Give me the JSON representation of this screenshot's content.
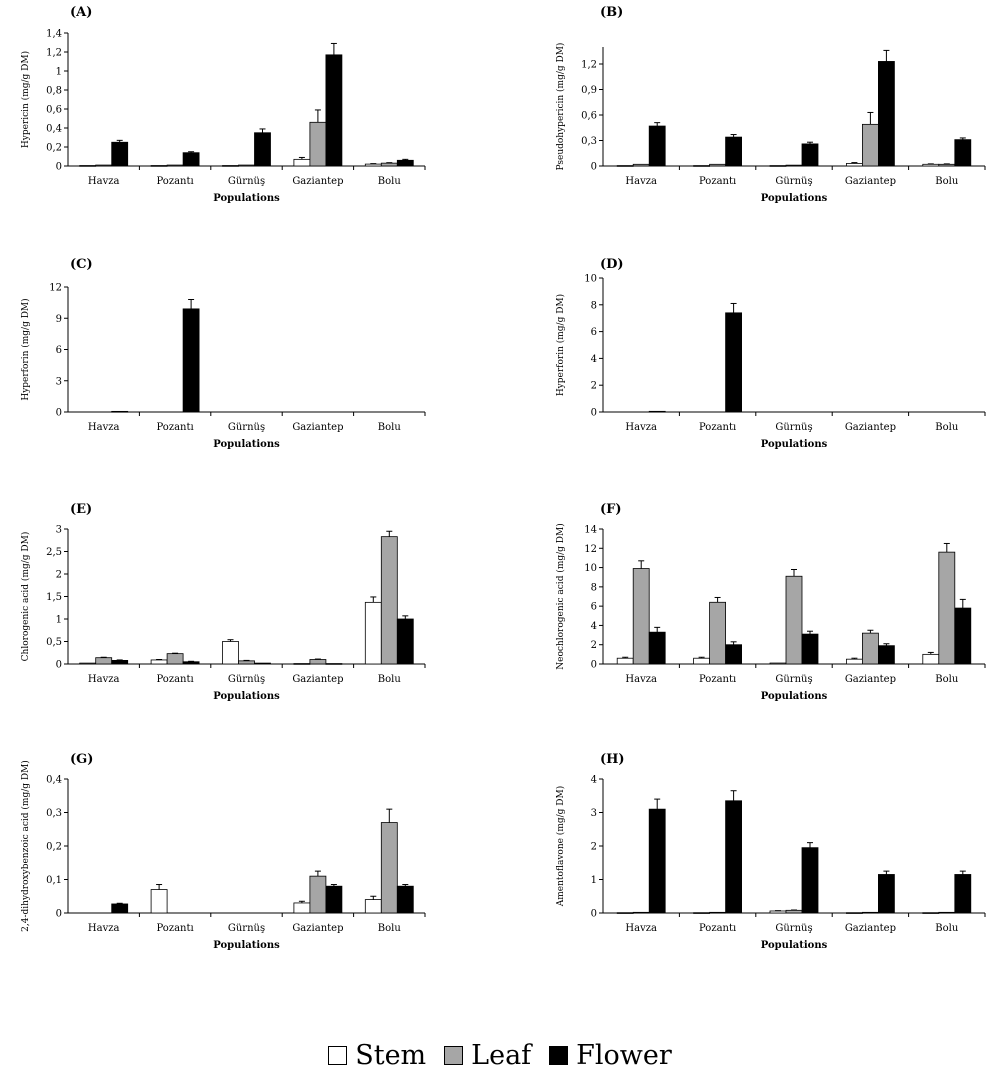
{
  "chart_data": [
    {
      "panel": "(A)",
      "type": "bar",
      "categories": [
        "Havza",
        "Pozantı",
        "Gürnüş",
        "Gaziantep",
        "Bolu"
      ],
      "ylabel": "Hypericin (mg/g DM)",
      "xlabel": "Populations",
      "ylim": [
        0,
        1.4
      ],
      "yticks": [
        "0",
        "0,2",
        "0,4",
        "0,6",
        "0,8",
        "1",
        "1,2",
        "1,4"
      ],
      "series": [
        {
          "name": "Stem",
          "values": [
            0.005,
            0.005,
            0.005,
            0.07,
            0.02
          ],
          "errors": [
            0,
            0,
            0,
            0.02,
            0.005
          ]
        },
        {
          "name": "Leaf",
          "values": [
            0.01,
            0.01,
            0.01,
            0.46,
            0.03
          ],
          "errors": [
            0,
            0,
            0,
            0.13,
            0.005
          ]
        },
        {
          "name": "Flower",
          "values": [
            0.25,
            0.14,
            0.35,
            1.17,
            0.06
          ],
          "errors": [
            0.02,
            0.01,
            0.04,
            0.12,
            0.01
          ]
        }
      ]
    },
    {
      "panel": "(B)",
      "type": "bar",
      "categories": [
        "Havza",
        "Pozantı",
        "Gürnüş",
        "Gaziantep",
        "Bolu"
      ],
      "ylabel": "Pseudohypericin (mg/g DM)",
      "xlabel": "Populations",
      "ylim": [
        0,
        1.4
      ],
      "yticks": [
        "0",
        "0,3",
        "0,6",
        "0,9",
        "1,2"
      ],
      "ytick_values": [
        0,
        0.3,
        0.6,
        0.9,
        1.2
      ],
      "series": [
        {
          "name": "Stem",
          "values": [
            0.005,
            0.005,
            0.005,
            0.03,
            0.02
          ],
          "errors": [
            0,
            0,
            0,
            0.01,
            0.005
          ]
        },
        {
          "name": "Leaf",
          "values": [
            0.02,
            0.02,
            0.01,
            0.49,
            0.02
          ],
          "errors": [
            0,
            0,
            0,
            0.14,
            0.005
          ]
        },
        {
          "name": "Flower",
          "values": [
            0.47,
            0.34,
            0.26,
            1.23,
            0.31
          ],
          "errors": [
            0.04,
            0.03,
            0.02,
            0.13,
            0.02
          ]
        }
      ]
    },
    {
      "panel": "(C)",
      "type": "bar",
      "categories": [
        "Havza",
        "Pozantı",
        "Gürnüş",
        "Gaziantep",
        "Bolu"
      ],
      "ylabel": "Hyperforin (mg/g DM)",
      "xlabel": "Populations",
      "ylim": [
        0,
        12
      ],
      "yticks": [
        "0",
        "3",
        "6",
        "9",
        "12"
      ],
      "series": [
        {
          "name": "Stem",
          "values": [
            0,
            0,
            0,
            0,
            0
          ],
          "errors": [
            0,
            0,
            0,
            0,
            0
          ]
        },
        {
          "name": "Leaf",
          "values": [
            0,
            0,
            0,
            0,
            0
          ],
          "errors": [
            0,
            0,
            0,
            0,
            0
          ]
        },
        {
          "name": "Flower",
          "values": [
            0.06,
            9.9,
            0,
            0,
            0
          ],
          "errors": [
            0,
            0.9,
            0,
            0,
            0
          ]
        }
      ]
    },
    {
      "panel": "(D)",
      "type": "bar",
      "categories": [
        "Havza",
        "Pozantı",
        "Gürnüş",
        "Gaziantep",
        "Bolu"
      ],
      "ylabel": "Hyperforin (mg/g DM)",
      "xlabel": "Populations",
      "ylim": [
        0,
        10
      ],
      "yticks": [
        "0",
        "2",
        "4",
        "6",
        "8",
        "10"
      ],
      "series": [
        {
          "name": "Stem",
          "values": [
            0,
            0,
            0,
            0,
            0
          ],
          "errors": [
            0,
            0,
            0,
            0,
            0
          ]
        },
        {
          "name": "Leaf",
          "values": [
            0,
            0,
            0,
            0,
            0
          ],
          "errors": [
            0,
            0,
            0,
            0,
            0
          ]
        },
        {
          "name": "Flower",
          "values": [
            0.05,
            7.4,
            0,
            0,
            0
          ],
          "errors": [
            0,
            0.7,
            0,
            0,
            0
          ]
        }
      ]
    },
    {
      "panel": "(E)",
      "type": "bar",
      "categories": [
        "Havza",
        "Pozantı",
        "Gürnüş",
        "Gaziantep",
        "Bolu"
      ],
      "ylabel": "Chlorogenic acid (mg/g DM)",
      "xlabel": "Populations",
      "ylim": [
        0,
        3
      ],
      "yticks": [
        "0",
        "0,5",
        "1",
        "1,5",
        "2",
        "2,5",
        "3"
      ],
      "series": [
        {
          "name": "Stem",
          "values": [
            0.02,
            0.09,
            0.5,
            0.01,
            1.37
          ],
          "errors": [
            0,
            0.01,
            0.04,
            0,
            0.12
          ]
        },
        {
          "name": "Leaf",
          "values": [
            0.14,
            0.23,
            0.07,
            0.1,
            2.83
          ],
          "errors": [
            0.01,
            0.01,
            0.01,
            0.01,
            0.12
          ]
        },
        {
          "name": "Flower",
          "values": [
            0.08,
            0.05,
            0.02,
            0.01,
            1.0
          ],
          "errors": [
            0.01,
            0.01,
            0,
            0,
            0.07
          ]
        }
      ]
    },
    {
      "panel": "(F)",
      "type": "bar",
      "categories": [
        "Havza",
        "Pozantı",
        "Gürnüş",
        "Gaziantep",
        "Bolu"
      ],
      "ylabel": "Neochlorogenic acid (mg/g DM)",
      "xlabel": "Populations",
      "ylim": [
        0,
        14
      ],
      "yticks": [
        "0",
        "2",
        "4",
        "6",
        "8",
        "10",
        "12",
        "14"
      ],
      "series": [
        {
          "name": "Stem",
          "values": [
            0.6,
            0.6,
            0.1,
            0.5,
            1.0
          ],
          "errors": [
            0.1,
            0.1,
            0,
            0.1,
            0.2
          ]
        },
        {
          "name": "Leaf",
          "values": [
            9.9,
            6.4,
            9.1,
            3.2,
            11.6
          ],
          "errors": [
            0.8,
            0.5,
            0.7,
            0.3,
            0.9
          ]
        },
        {
          "name": "Flower",
          "values": [
            3.3,
            2.0,
            3.1,
            1.9,
            5.8
          ],
          "errors": [
            0.5,
            0.3,
            0.3,
            0.2,
            0.9
          ]
        }
      ]
    },
    {
      "panel": "(G)",
      "type": "bar",
      "categories": [
        "Havza",
        "Pozantı",
        "Gürnüş",
        "Gaziantep",
        "Bolu"
      ],
      "ylabel": "2,4-dihydroxybenzoic acid (mg/g DM)",
      "xlabel": "Populations",
      "ylim": [
        0,
        0.4
      ],
      "yticks": [
        "0",
        "0,1",
        "0,2",
        "0,3",
        "0,4"
      ],
      "series": [
        {
          "name": "Stem",
          "values": [
            0,
            0.07,
            0,
            0.03,
            0.04
          ],
          "errors": [
            0,
            0.015,
            0,
            0.005,
            0.01
          ]
        },
        {
          "name": "Leaf",
          "values": [
            0,
            0,
            0,
            0.11,
            0.27
          ],
          "errors": [
            0,
            0,
            0,
            0.015,
            0.04
          ]
        },
        {
          "name": "Flower",
          "values": [
            0.027,
            0,
            0,
            0.08,
            0.08
          ],
          "errors": [
            0.002,
            0,
            0,
            0.005,
            0.005
          ]
        }
      ]
    },
    {
      "panel": "(H)",
      "type": "bar",
      "categories": [
        "Havza",
        "Pozantı",
        "Gürnüş",
        "Gaziantep",
        "Bolu"
      ],
      "ylabel": "Amentoflavone (mg/g DM)",
      "xlabel": "Populations",
      "ylim": [
        0,
        4
      ],
      "yticks": [
        "0",
        "1",
        "2",
        "3",
        "4"
      ],
      "series": [
        {
          "name": "Stem",
          "values": [
            0.01,
            0.01,
            0.06,
            0.01,
            0.01
          ],
          "errors": [
            0,
            0,
            0.01,
            0,
            0
          ]
        },
        {
          "name": "Leaf",
          "values": [
            0.02,
            0.02,
            0.08,
            0.02,
            0.02
          ],
          "errors": [
            0,
            0,
            0.01,
            0,
            0
          ]
        },
        {
          "name": "Flower",
          "values": [
            3.1,
            3.35,
            1.95,
            1.15,
            1.15
          ],
          "errors": [
            0.3,
            0.3,
            0.15,
            0.1,
            0.1
          ]
        }
      ]
    }
  ],
  "legend": [
    {
      "label": "Stem",
      "color": "#ffffff"
    },
    {
      "label": "Leaf",
      "color": "#a6a6a6"
    },
    {
      "label": "Flower",
      "color": "#000000"
    }
  ],
  "colors": {
    "Stem": "#ffffff",
    "Leaf": "#a6a6a6",
    "Flower": "#000000"
  }
}
